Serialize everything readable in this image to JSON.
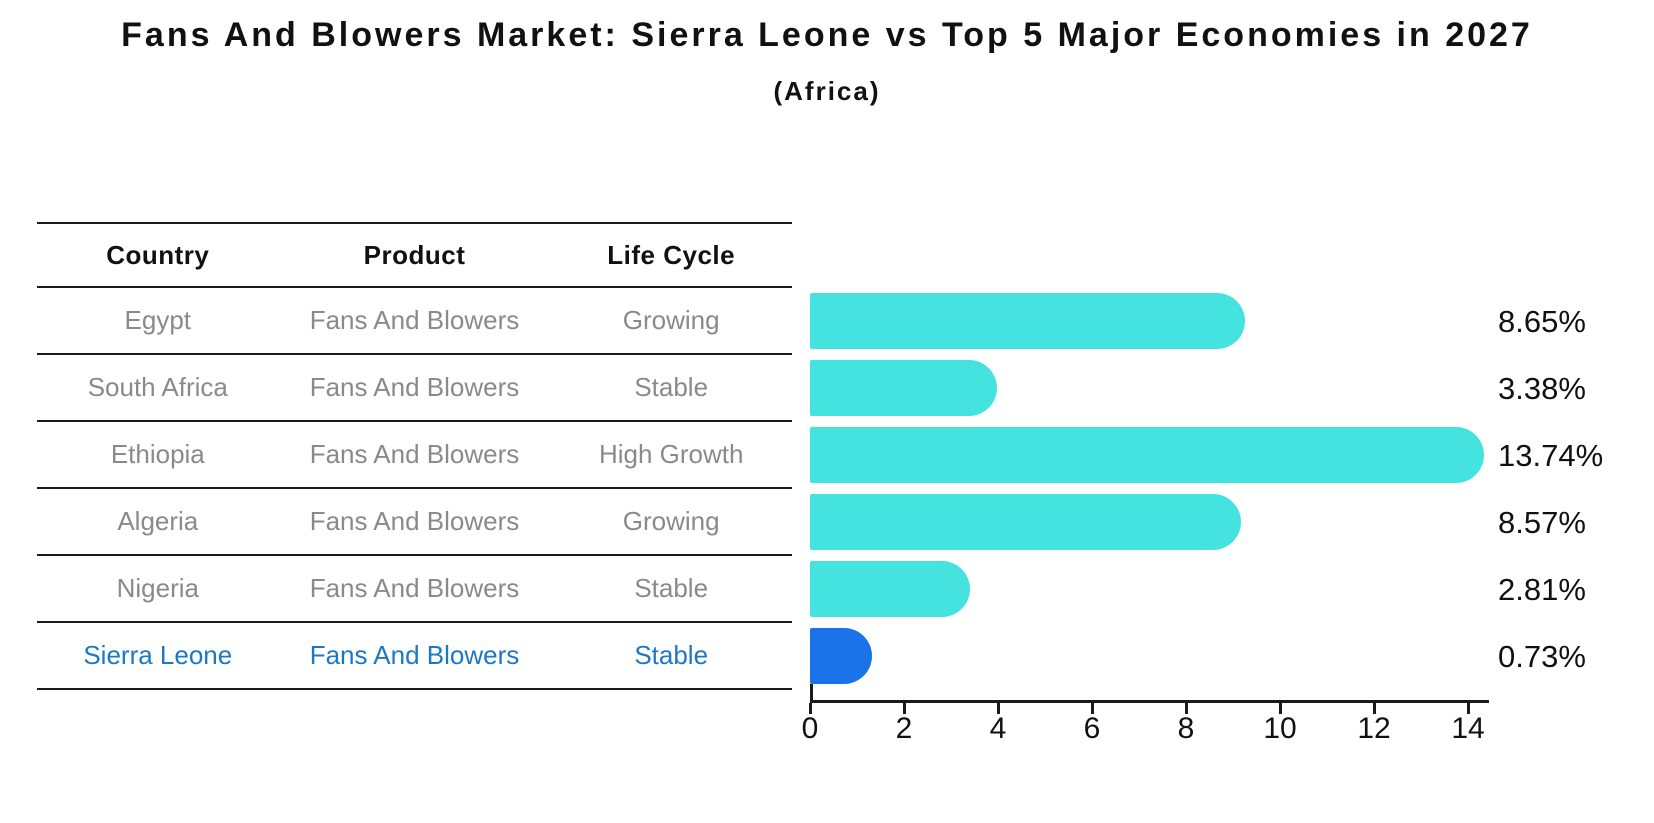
{
  "title": "Fans And Blowers Market: Sierra Leone vs Top 5 Major Economies in 2027",
  "subtitle": "(Africa)",
  "table": {
    "headers": [
      "Country",
      "Product",
      "Life Cycle"
    ],
    "rows": [
      {
        "country": "Egypt",
        "product": "Fans And Blowers",
        "life_cycle": "Growing"
      },
      {
        "country": "South Africa",
        "product": "Fans And Blowers",
        "life_cycle": "Stable"
      },
      {
        "country": "Ethiopia",
        "product": "Fans And Blowers",
        "life_cycle": "High Growth"
      },
      {
        "country": "Algeria",
        "product": "Fans And Blowers",
        "life_cycle": "Growing"
      },
      {
        "country": "Nigeria",
        "product": "Fans And Blowers",
        "life_cycle": "Stable"
      },
      {
        "country": "Sierra Leone",
        "product": "Fans And Blowers",
        "life_cycle": "Stable"
      }
    ],
    "highlight_row": "Sierra Leone"
  },
  "chart_data": {
    "type": "bar",
    "orientation": "horizontal",
    "title": "Fans And Blowers Market: Sierra Leone vs Top 5 Major Economies in 2027",
    "subtitle": "(Africa)",
    "categories": [
      "Egypt",
      "South Africa",
      "Ethiopia",
      "Algeria",
      "Nigeria",
      "Sierra Leone"
    ],
    "values": [
      8.65,
      3.38,
      13.74,
      8.57,
      2.81,
      0.73
    ],
    "value_labels": [
      "8.65%",
      "3.38%",
      "13.74%",
      "8.57%",
      "2.81%",
      "0.73%"
    ],
    "unit": "%",
    "x_ticks": [
      0,
      2,
      4,
      6,
      8,
      10,
      12,
      14
    ],
    "xlim": [
      0,
      14.4
    ],
    "grid": false,
    "legend": false,
    "highlight_index": 5,
    "bar_color": "#45E3E0",
    "highlight_color": "#1A73E8"
  },
  "colors": {
    "background": "#FFFFFF",
    "text": "#111111",
    "muted_text": "#8A8A8A",
    "highlight_text": "#1B78C9",
    "line": "#1A1A1A"
  }
}
